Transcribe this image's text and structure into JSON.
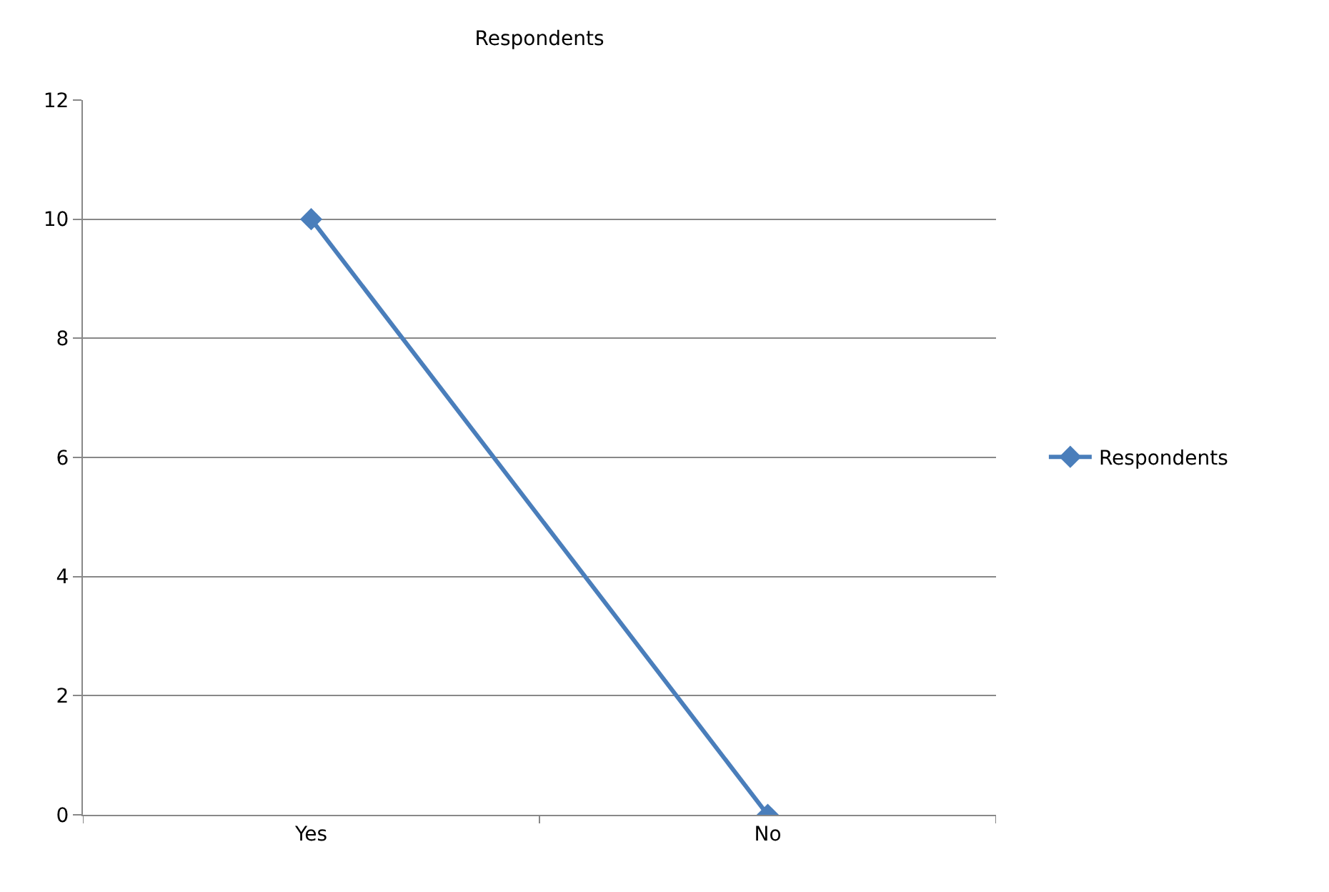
{
  "chart_data": {
    "type": "line",
    "title": "Respondents",
    "categories": [
      "Yes",
      "No"
    ],
    "series": [
      {
        "name": "Respondents",
        "color": "#4a7ebb",
        "values": [
          10,
          0
        ]
      }
    ],
    "ylim": [
      0,
      12
    ],
    "yticks": [
      0,
      2,
      4,
      6,
      8,
      10,
      12
    ],
    "grid": "y",
    "legend": "right",
    "marker": "diamond"
  }
}
